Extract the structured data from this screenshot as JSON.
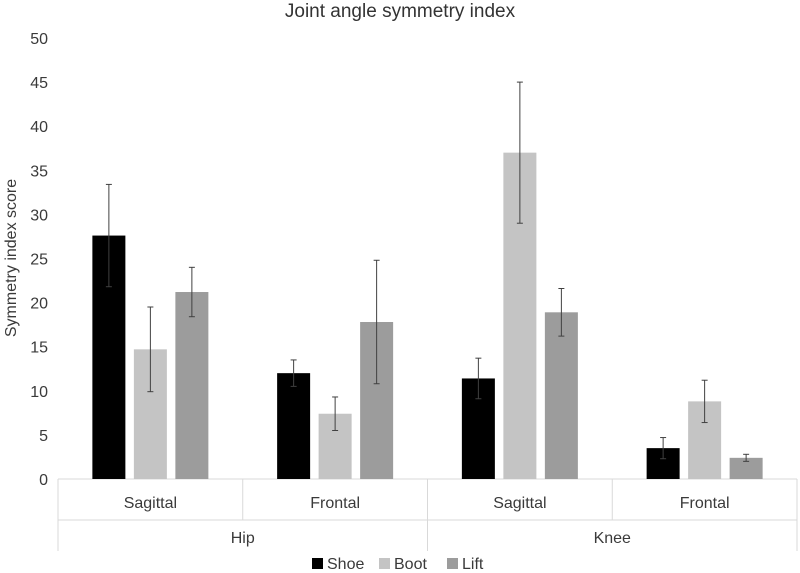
{
  "chart_data": {
    "type": "bar",
    "title": "Joint angle symmetry index",
    "ylabel": "Symmetry index score",
    "xlabel": "",
    "ylim": [
      0,
      50
    ],
    "yticks": [
      0,
      5,
      10,
      15,
      20,
      25,
      30,
      35,
      40,
      45,
      50
    ],
    "groups": [
      {
        "name": "Hip",
        "categories": [
          "Sagittal",
          "Frontal"
        ]
      },
      {
        "name": "Knee",
        "categories": [
          "Sagittal",
          "Frontal"
        ]
      }
    ],
    "categories": [
      "Sagittal",
      "Frontal",
      "Sagittal",
      "Frontal"
    ],
    "series": [
      {
        "name": "Shoe",
        "color": "#000000",
        "values": [
          27.6,
          12.0,
          11.4,
          3.5
        ],
        "error": [
          5.8,
          1.5,
          2.3,
          1.2
        ]
      },
      {
        "name": "Boot",
        "color": "#c4c4c4",
        "values": [
          14.7,
          7.4,
          37.0,
          8.8
        ],
        "error": [
          4.8,
          1.9,
          8.0,
          2.4
        ]
      },
      {
        "name": "Lift",
        "color": "#9c9c9c",
        "values": [
          21.2,
          17.8,
          18.9,
          2.4
        ],
        "error": [
          2.8,
          7.0,
          2.7,
          0.4
        ]
      }
    ],
    "grid": false,
    "legend": "bottom"
  }
}
